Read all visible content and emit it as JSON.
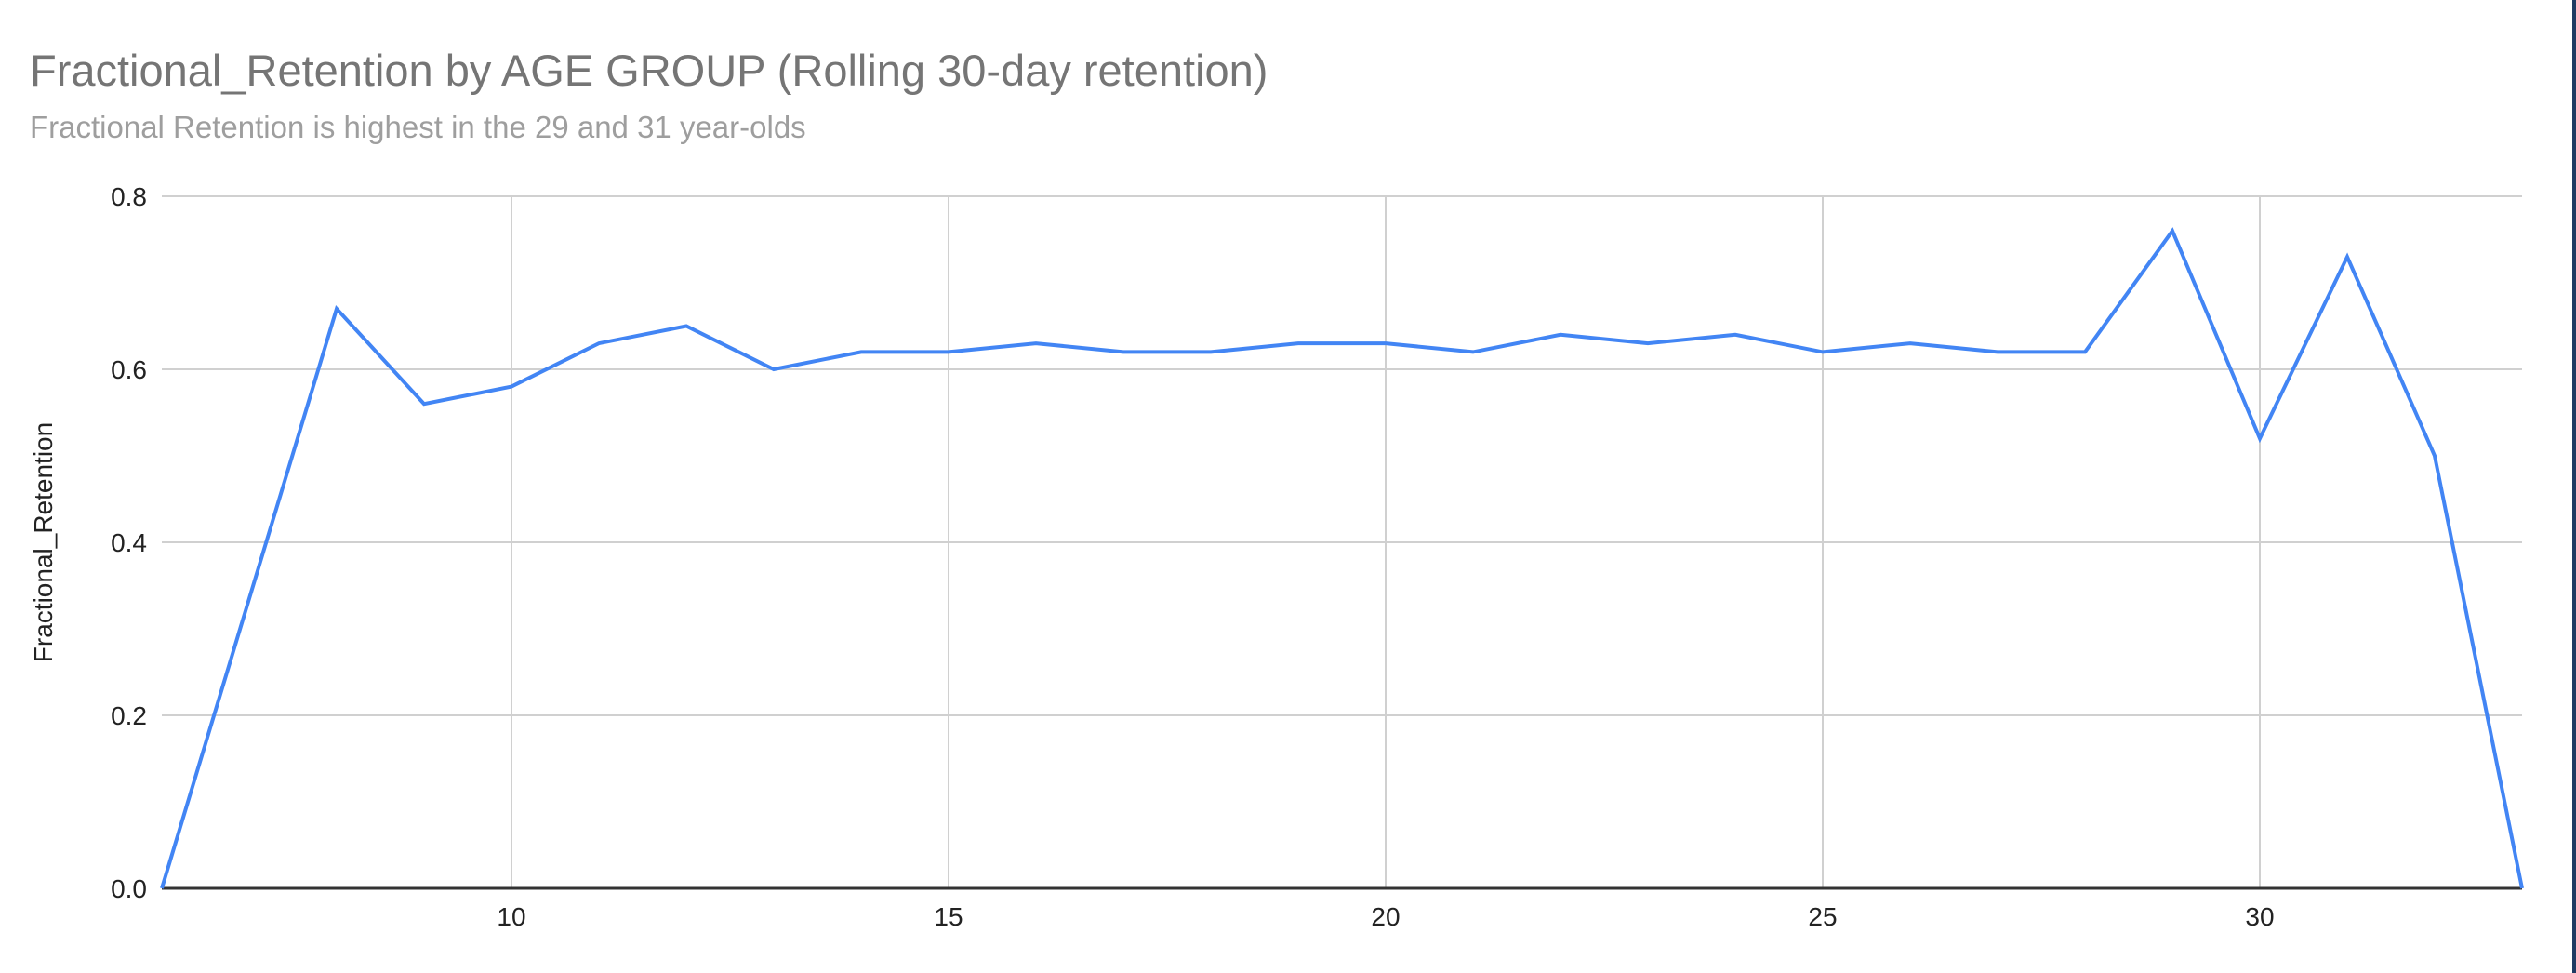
{
  "chart_data": {
    "type": "line",
    "title": "Fractional_Retention by AGE GROUP (Rolling 30-day retention)",
    "subtitle": "Fractional Retention is highest in the 29 and 31 year-olds",
    "xlabel": "",
    "ylabel": "Fractional_Retention",
    "xlim": [
      6,
      33
    ],
    "ylim": [
      0,
      0.8
    ],
    "x_ticks": [
      10,
      15,
      20,
      25,
      30
    ],
    "y_ticks": [
      0.0,
      0.2,
      0.4,
      0.6,
      0.8
    ],
    "x_tick_labels": [
      "10",
      "15",
      "20",
      "25",
      "30"
    ],
    "y_tick_labels": [
      "0.0",
      "0.2",
      "0.4",
      "0.6",
      "0.8"
    ],
    "grid": true,
    "legend": "none",
    "series": [
      {
        "color": "#4285f4",
        "x": [
          6,
          8,
          9,
          10,
          11,
          12,
          13,
          14,
          15,
          16,
          17,
          18,
          19,
          20,
          21,
          22,
          23,
          24,
          25,
          26,
          27,
          28,
          29,
          30,
          31,
          32,
          33
        ],
        "y": [
          0.0,
          0.67,
          0.56,
          0.58,
          0.63,
          0.65,
          0.6,
          0.62,
          0.62,
          0.63,
          0.62,
          0.62,
          0.63,
          0.63,
          0.62,
          0.64,
          0.63,
          0.64,
          0.62,
          0.63,
          0.62,
          0.62,
          0.76,
          0.52,
          0.73,
          0.5,
          0.0
        ]
      }
    ]
  }
}
